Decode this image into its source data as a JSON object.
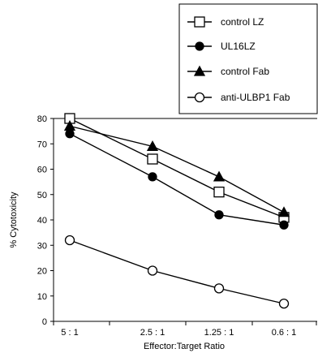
{
  "chart_data": {
    "type": "line",
    "title": "",
    "xlabel": "Effector:Target Ratio",
    "ylabel": "% Cytotoxicity",
    "categories": [
      "5 : 1",
      "2.5 : 1",
      "1.25 : 1",
      "0.6 : 1"
    ],
    "ylim": [
      0,
      80
    ],
    "yticks": [
      0,
      10,
      20,
      30,
      40,
      50,
      60,
      70,
      80
    ],
    "grid": false,
    "legend_position": "top-right",
    "series": [
      {
        "name": "control LZ",
        "marker": "open-square",
        "values": [
          80,
          64,
          51,
          41
        ]
      },
      {
        "name": "UL16LZ",
        "marker": "filled-circle",
        "values": [
          74,
          57,
          42,
          38
        ]
      },
      {
        "name": "control Fab",
        "marker": "filled-triangle",
        "values": [
          77,
          69,
          57,
          43
        ]
      },
      {
        "name": "anti-ULBP1 Fab",
        "marker": "open-circle",
        "values": [
          32,
          20,
          13,
          7
        ]
      }
    ]
  }
}
